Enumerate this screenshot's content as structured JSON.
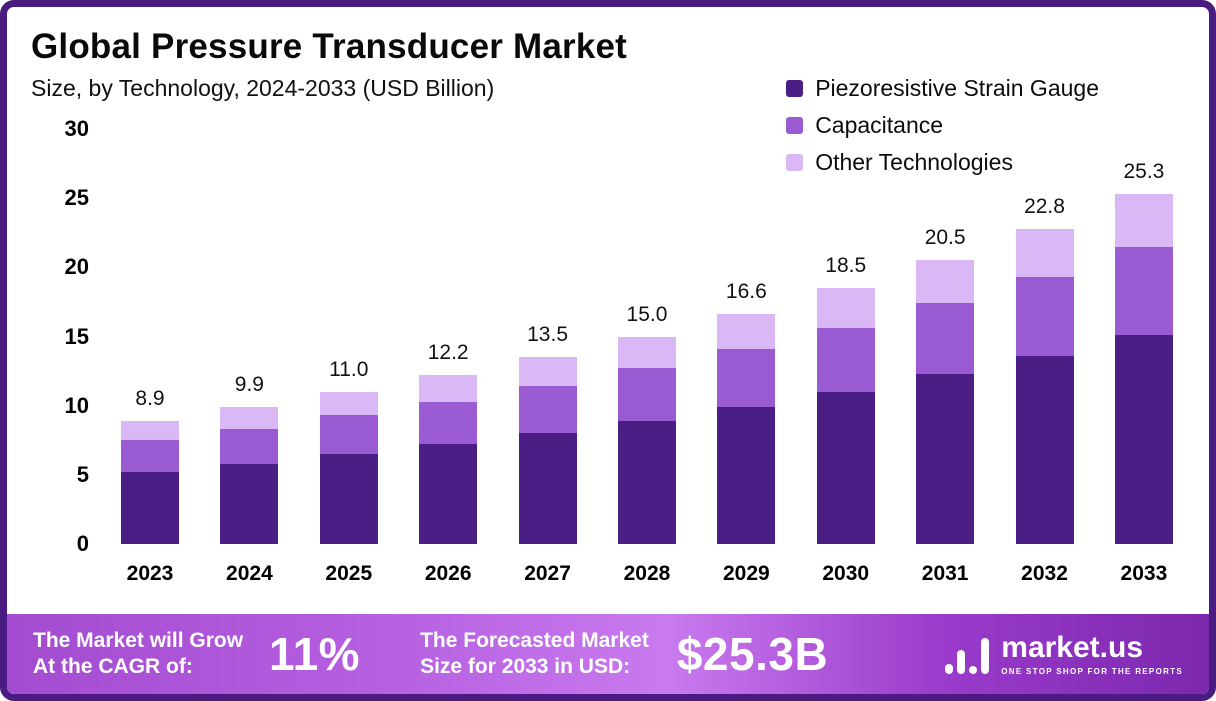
{
  "header": {
    "title": "Global Pressure Transducer Market",
    "subtitle": "Size, by Technology, 2024-2033 (USD Billion)"
  },
  "legend": [
    {
      "label": "Piezoresistive Strain Gauge",
      "color": "#4a1e85"
    },
    {
      "label": "Capacitance",
      "color": "#9a5bd2"
    },
    {
      "label": "Other Technologies",
      "color": "#d9b8f5"
    }
  ],
  "chart_data": {
    "type": "bar",
    "stacked": true,
    "title": "Global Pressure Transducer Market",
    "subtitle": "Size, by Technology, 2024-2033 (USD Billion)",
    "xlabel": "",
    "ylabel": "USD Billion",
    "ylim": [
      0,
      30
    ],
    "yticks": [
      0,
      5,
      10,
      15,
      20,
      25,
      30
    ],
    "grid": false,
    "legend_position": "top-right",
    "categories": [
      "2023",
      "2024",
      "2025",
      "2026",
      "2027",
      "2028",
      "2029",
      "2030",
      "2031",
      "2032",
      "2033"
    ],
    "series": [
      {
        "name": "Piezoresistive Strain Gauge",
        "color": "#4a1e85",
        "values": [
          5.2,
          5.8,
          6.5,
          7.2,
          8.0,
          8.9,
          9.9,
          11.0,
          12.3,
          13.6,
          15.1
        ]
      },
      {
        "name": "Capacitance",
        "color": "#9a5bd2",
        "values": [
          2.3,
          2.5,
          2.8,
          3.1,
          3.4,
          3.8,
          4.2,
          4.6,
          5.1,
          5.7,
          6.4
        ]
      },
      {
        "name": "Other Technologies",
        "color": "#d9b8f5",
        "values": [
          1.4,
          1.6,
          1.7,
          1.9,
          2.1,
          2.3,
          2.5,
          2.9,
          3.1,
          3.5,
          3.8
        ]
      }
    ],
    "totals": [
      8.9,
      9.9,
      11.0,
      12.2,
      13.5,
      15.0,
      16.6,
      18.5,
      20.5,
      22.8,
      25.3
    ]
  },
  "footer": {
    "cagr_line1": "The Market will Grow",
    "cagr_line2": "At the CAGR of:",
    "cagr_value": "11%",
    "forecast_line1": "The Forecasted Market",
    "forecast_line2": "Size for 2033 in USD:",
    "forecast_value": "$25.3B",
    "brand": "market.us",
    "tagline": "ONE STOP SHOP FOR THE REPORTS"
  },
  "colors": {
    "frame_border": "#4a1c82",
    "footer_gradient_start": "#a44cd0",
    "footer_gradient_mid": "#c97aee",
    "footer_gradient_end": "#7c28ae"
  }
}
